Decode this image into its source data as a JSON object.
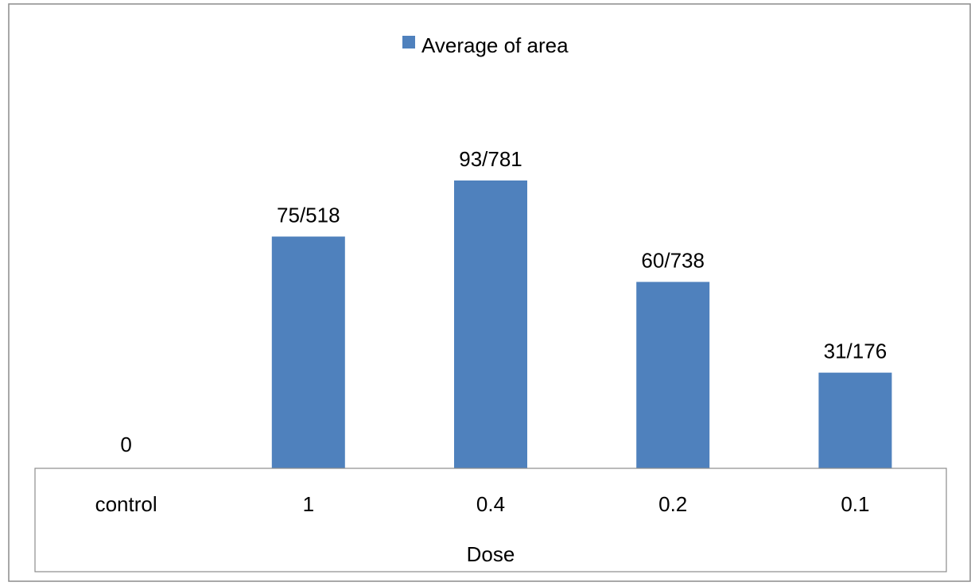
{
  "chart_data": {
    "type": "bar",
    "categories": [
      "control",
      "1",
      "0.4",
      "0.2",
      "0.1"
    ],
    "values": [
      0,
      75.518,
      93.781,
      60.738,
      31.176
    ],
    "data_labels": [
      "0",
      "75/518",
      "93/781",
      "60/738",
      "31/176"
    ],
    "series": [
      {
        "name": "Average of area",
        "values": [
          0,
          75.518,
          93.781,
          60.738,
          31.176
        ]
      }
    ],
    "title": "",
    "xlabel": "Dose",
    "ylabel": "",
    "ylim": [
      0,
      100
    ],
    "grid": false,
    "legend_position": "top"
  },
  "colors": {
    "bar": "#4f81bd",
    "frame": "#8c8c8c"
  }
}
